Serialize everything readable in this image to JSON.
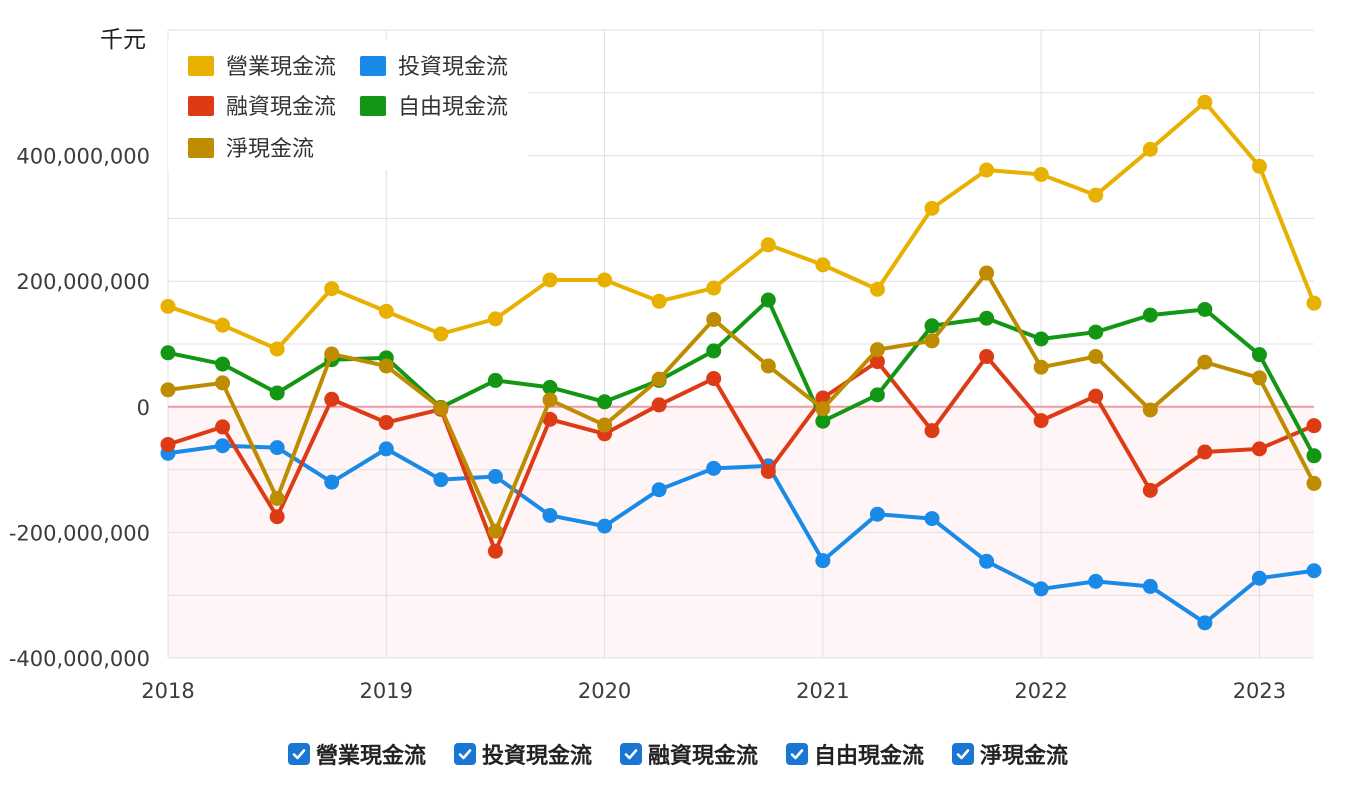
{
  "chart_data": {
    "type": "line",
    "unit_label": "千元",
    "x_ticks": [
      "2018",
      "2019",
      "2020",
      "2021",
      "2022",
      "2023"
    ],
    "y_ticks": [
      "400,000,000",
      "200,000,000",
      "0",
      "-200,000,000",
      "-400,000,000"
    ],
    "ylim": [
      -400000000,
      600000000
    ],
    "x": [
      2018.0,
      2018.25,
      2018.5,
      2018.75,
      2019.0,
      2019.25,
      2019.5,
      2019.75,
      2020.0,
      2020.25,
      2020.5,
      2020.75,
      2021.0,
      2021.25,
      2021.5,
      2021.75,
      2022.0,
      2022.25,
      2022.5,
      2022.75,
      2023.0,
      2023.25
    ],
    "series": [
      {
        "name": "營業現金流",
        "color": "#e8b000",
        "values": [
          160000000,
          130000000,
          92000000,
          188000000,
          152000000,
          116000000,
          140000000,
          202000000,
          202000000,
          168000000,
          189000000,
          258000000,
          226000000,
          187000000,
          316000000,
          377000000,
          370000000,
          337000000,
          410000000,
          485000000,
          383000000,
          165000000
        ]
      },
      {
        "name": "投資現金流",
        "color": "#1a8ae8",
        "values": [
          -74000000,
          -62000000,
          -65000000,
          -120000000,
          -67000000,
          -116000000,
          -111000000,
          -173000000,
          -190000000,
          -132000000,
          -98000000,
          -94000000,
          -245000000,
          -171000000,
          -178000000,
          -246000000,
          -290000000,
          -278000000,
          -286000000,
          -344000000,
          -273000000,
          -261000000
        ]
      },
      {
        "name": "融資現金流",
        "color": "#dd3b16",
        "values": [
          -60000000,
          -32000000,
          -175000000,
          12000000,
          -25000000,
          -4000000,
          -230000000,
          -20000000,
          -43000000,
          3000000,
          45000000,
          -103000000,
          14000000,
          72000000,
          -38000000,
          80000000,
          -22000000,
          17000000,
          -133000000,
          -72000000,
          -67000000,
          -30000000
        ]
      },
      {
        "name": "自由現金流",
        "color": "#139613",
        "values": [
          86000000,
          68000000,
          22000000,
          75000000,
          78000000,
          -1000000,
          42000000,
          31000000,
          8000000,
          42000000,
          89000000,
          170000000,
          -23000000,
          19000000,
          129000000,
          141000000,
          108000000,
          119000000,
          146000000,
          155000000,
          83000000,
          -78000000
        ]
      },
      {
        "name": "淨現金流",
        "color": "#be8c00",
        "values": [
          27000000,
          38000000,
          -146000000,
          84000000,
          65000000,
          -2000000,
          -198000000,
          11000000,
          -29000000,
          44000000,
          139000000,
          65000000,
          -3000000,
          91000000,
          105000000,
          213000000,
          63000000,
          80000000,
          -5000000,
          71000000,
          46000000,
          -122000000
        ]
      }
    ]
  },
  "legend": {
    "items": [
      "營業現金流",
      "投資現金流",
      "融資現金流",
      "自由現金流",
      "淨現金流"
    ]
  },
  "toggles": [
    {
      "label": "營業現金流",
      "checked": true
    },
    {
      "label": "投資現金流",
      "checked": true
    },
    {
      "label": "融資現金流",
      "checked": true
    },
    {
      "label": "自由現金流",
      "checked": true
    },
    {
      "label": "淨現金流",
      "checked": true
    }
  ]
}
